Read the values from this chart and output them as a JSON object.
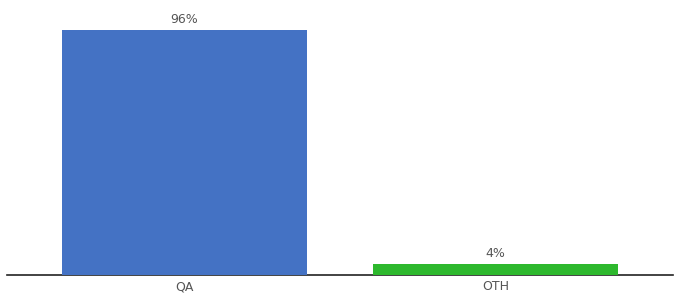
{
  "categories": [
    "QA",
    "OTH"
  ],
  "values": [
    96,
    4
  ],
  "bar_colors": [
    "#4472c4",
    "#2db82d"
  ],
  "ylim": [
    0,
    105
  ],
  "background_color": "#ffffff",
  "bar_labels": [
    "96%",
    "4%"
  ],
  "label_fontsize": 9,
  "tick_fontsize": 9,
  "label_color": "#555555",
  "tick_color": "#555555",
  "bar_width": 0.55,
  "x_positions": [
    0.3,
    1.0
  ]
}
